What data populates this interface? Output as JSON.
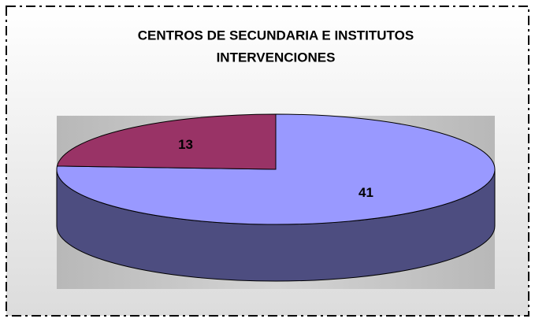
{
  "chart_data": {
    "type": "pie3d",
    "title": [
      "CENTROS  DE SECUNDARIA E INSTITUTOS",
      "INTERVENCIONES"
    ],
    "series": [
      {
        "values": [
          41,
          13
        ],
        "colors": [
          "#9999ff",
          "#993366"
        ],
        "side_color": "#4d4d80"
      }
    ]
  }
}
